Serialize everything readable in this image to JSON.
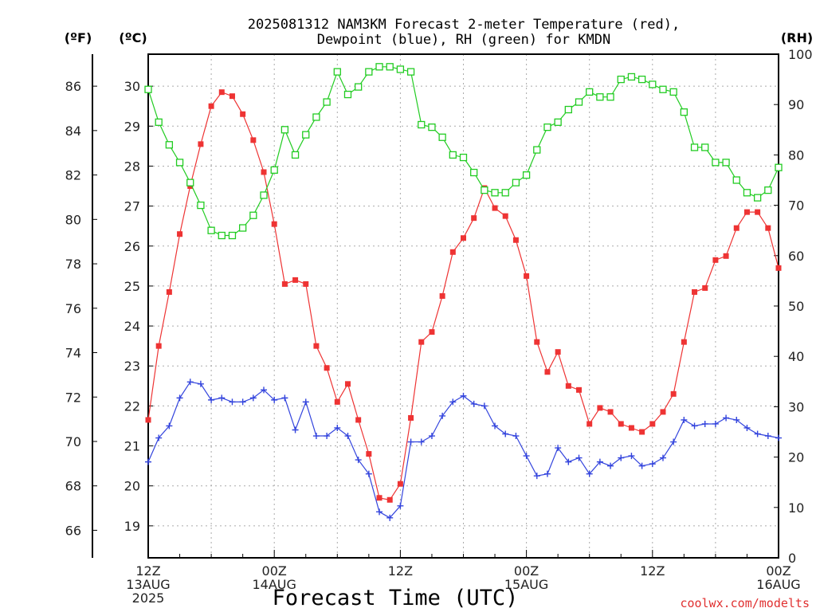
{
  "title_line1": "2025081312 NAM3KM Forecast 2-meter Temperature (red),",
  "title_line2": "Dewpoint (blue), RH (green) for KMDN",
  "credit": "coolwx.com/modelts",
  "colors": {
    "temp": "#ee3333",
    "dew": "#3344dd",
    "rh": "#22cc22",
    "grid": "#aaaaaa"
  },
  "chart_data": {
    "type": "line",
    "title": "2025081312 NAM3KM Forecast 2-meter Temperature (red), Dewpoint (blue), RH (green) for KMDN",
    "xlabel": "Forecast Time (UTC)",
    "x_tick_labels": [
      {
        "hour": 0,
        "lines": [
          "12Z",
          "13AUG",
          "2025"
        ]
      },
      {
        "hour": 12,
        "lines": [
          "00Z",
          "14AUG"
        ]
      },
      {
        "hour": 24,
        "lines": [
          "12Z"
        ]
      },
      {
        "hour": 36,
        "lines": [
          "00Z",
          "15AUG"
        ]
      },
      {
        "hour": 48,
        "lines": [
          "12Z"
        ]
      },
      {
        "hour": 60,
        "lines": [
          "00Z",
          "16AUG"
        ]
      }
    ],
    "x_range_hours": [
      0,
      60
    ],
    "axes": {
      "left_f": {
        "label": "(ºF)",
        "ticks": [
          66,
          68,
          70,
          72,
          74,
          76,
          78,
          80,
          82,
          84,
          86
        ]
      },
      "left_c": {
        "label": "(ºC)",
        "ticks": [
          19,
          20,
          21,
          22,
          23,
          24,
          25,
          26,
          27,
          28,
          29,
          30
        ],
        "ylim": [
          18.2,
          30.8
        ]
      },
      "right_rh": {
        "label": "(RH)",
        "ticks": [
          0,
          10,
          20,
          30,
          40,
          50,
          60,
          70,
          80,
          90,
          100
        ],
        "ylim": [
          0,
          100
        ]
      }
    },
    "grid": true,
    "series": [
      {
        "key": "temp",
        "marker": "filled-square",
        "axis": "left_c",
        "values": [
          21.65,
          23.5,
          24.85,
          26.3,
          27.5,
          28.55,
          29.5,
          29.85,
          29.75,
          29.3,
          28.65,
          27.85,
          26.55,
          25.05,
          25.15,
          25.05,
          23.5,
          22.95,
          22.1,
          22.55,
          21.65,
          20.8,
          19.7,
          19.65,
          20.05,
          21.7,
          23.6,
          23.85,
          24.75,
          25.85,
          26.2,
          26.7,
          27.45,
          26.95,
          26.75,
          26.15,
          25.25,
          23.6,
          22.85,
          23.35,
          22.5,
          22.4,
          21.55,
          21.95,
          21.85,
          21.55,
          21.45,
          21.35,
          21.55,
          21.85,
          22.3,
          23.6,
          24.85,
          24.95,
          25.65,
          25.75,
          26.45,
          26.85,
          26.85,
          26.45,
          25.45
        ],
        "note": "Temperature in degrees C read against the (ºC) axis"
      },
      {
        "key": "dew",
        "marker": "plus",
        "axis": "left_c",
        "values": [
          20.6,
          21.2,
          21.5,
          22.2,
          22.6,
          22.55,
          22.15,
          22.2,
          22.1,
          22.1,
          22.2,
          22.4,
          22.15,
          22.2,
          21.4,
          22.1,
          21.25,
          21.25,
          21.45,
          21.25,
          20.65,
          20.3,
          19.35,
          19.2,
          19.5,
          21.1,
          21.1,
          21.25,
          21.75,
          22.1,
          22.25,
          22.05,
          22.0,
          21.5,
          21.3,
          21.25,
          20.75,
          20.25,
          20.3,
          20.95,
          20.6,
          20.7,
          20.3,
          20.6,
          20.5,
          20.7,
          20.75,
          20.5,
          20.55,
          20.7,
          21.1,
          21.65,
          21.5,
          21.55,
          21.55,
          21.7,
          21.65,
          21.45,
          21.3,
          21.25,
          21.2
        ]
      },
      {
        "key": "rh",
        "marker": "open-square",
        "axis": "right_rh",
        "values": [
          93,
          86.5,
          82,
          78.5,
          74.5,
          70,
          65,
          64,
          64,
          65.5,
          68,
          72,
          77,
          85,
          80,
          84,
          87.5,
          90.5,
          96.5,
          92,
          93.5,
          96.5,
          97.5,
          97.5,
          97,
          96.5,
          86,
          85.5,
          83.5,
          80,
          79.5,
          76.5,
          73,
          72.5,
          72.5,
          74.5,
          76,
          81,
          85.5,
          86.5,
          89,
          90.5,
          92.5,
          91.5,
          91.5,
          95,
          95.5,
          95,
          94,
          93,
          92.5,
          88.5,
          81.5,
          81.5,
          78.5,
          78.5,
          75,
          72.5,
          71.5,
          73,
          77.5
        ]
      }
    ]
  }
}
